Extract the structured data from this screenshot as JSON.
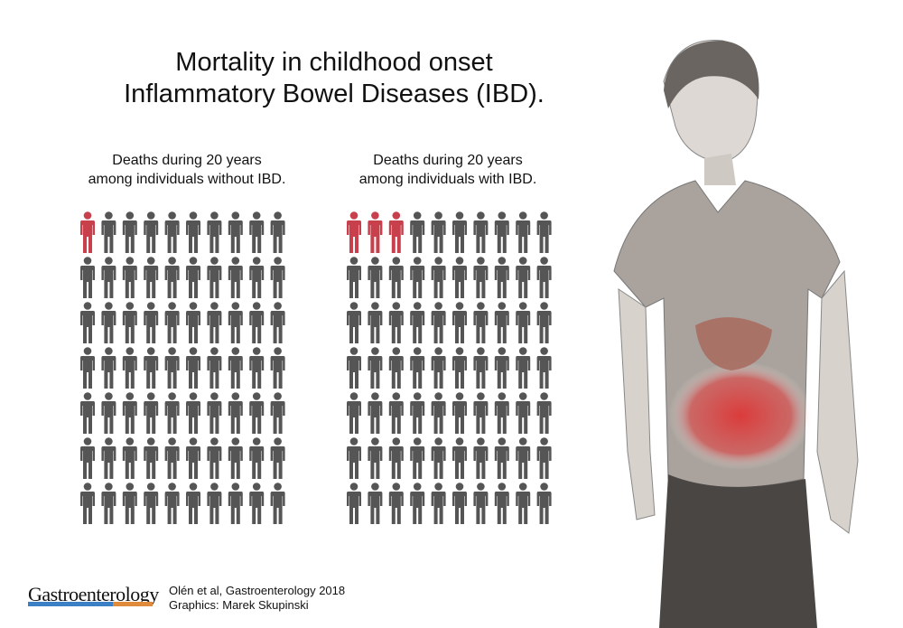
{
  "title_line1": "Mortality in childhood onset",
  "title_line2": "Inflammatory Bowel Diseases (IBD).",
  "chart_data": [
    {
      "type": "pictogram",
      "title": "Deaths during 20 years among individuals without IBD.",
      "title_line1": "Deaths during 20 years",
      "title_line2": "among individuals without IBD.",
      "total": 70,
      "highlighted": 1,
      "rows": 7,
      "columns": 10
    },
    {
      "type": "pictogram",
      "title": "Deaths during 20 years among individuals with IBD.",
      "title_line1": "Deaths during 20 years",
      "title_line2": "among individuals with IBD.",
      "total": 70,
      "highlighted": 3,
      "rows": 7,
      "columns": 10
    }
  ],
  "colors": {
    "highlight": "#c8404c",
    "base": "#555555",
    "logo_blue": "#3b80c4",
    "logo_orange": "#e08a3c"
  },
  "footer": {
    "logo": "Gastroenterology",
    "citation": "Olén et al, Gastroenterology 2018",
    "graphics": "Graphics: Marek Skupinski"
  }
}
